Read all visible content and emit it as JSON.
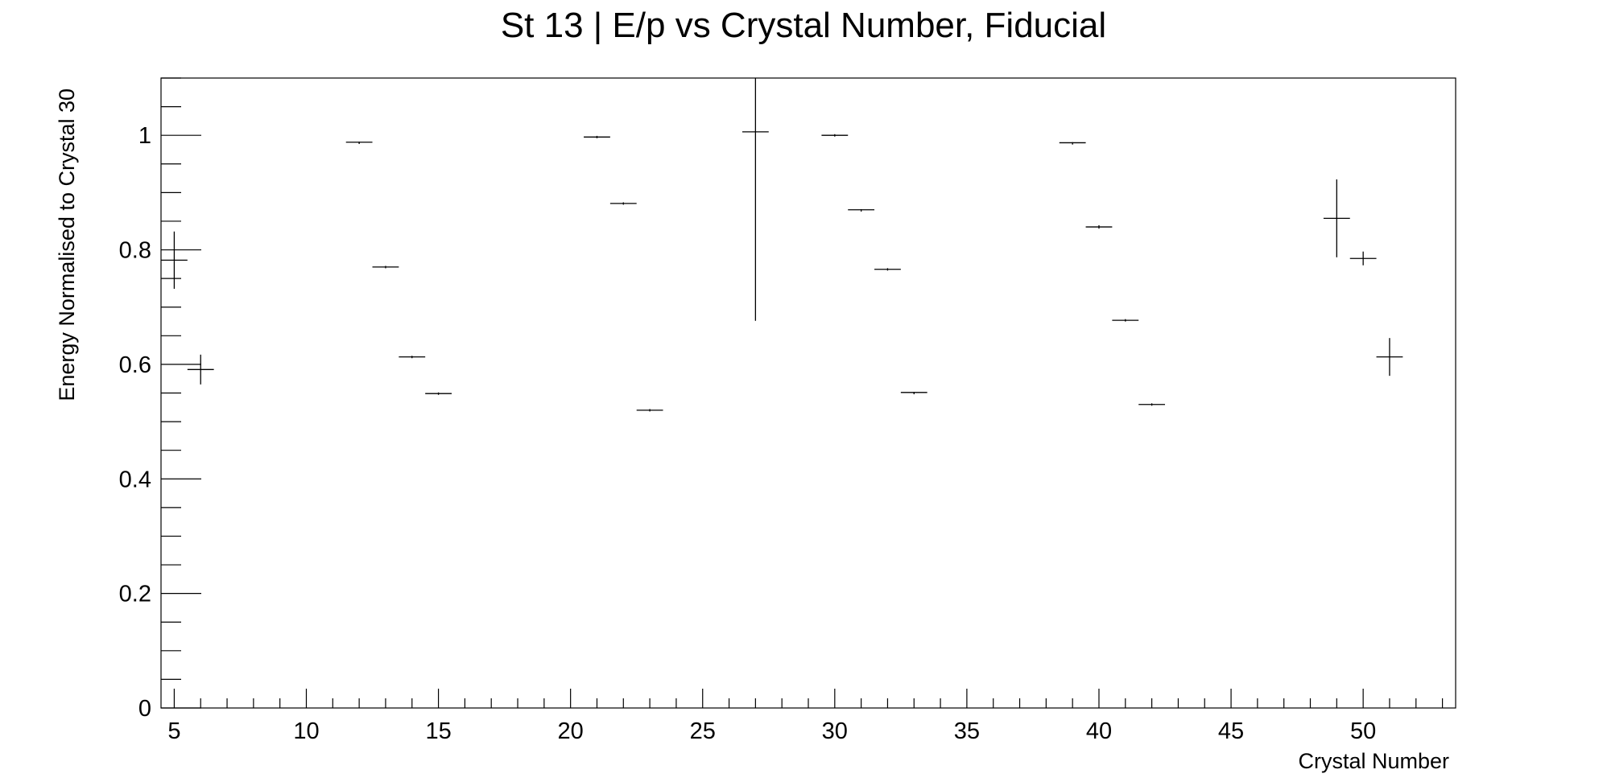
{
  "chart_data": {
    "type": "scatter",
    "title": "St 13 | E/p vs Crystal Number, Fiducial",
    "xlabel": "Crystal Number",
    "ylabel": "Energy Normalised to Crystal 30",
    "xlim": [
      4.5,
      53.5
    ],
    "ylim": [
      0,
      1.1
    ],
    "grid": false,
    "legend": "none",
    "x_ticks": [
      "5",
      "10",
      "15",
      "20",
      "25",
      "30",
      "35",
      "40",
      "45",
      "50"
    ],
    "y_ticks": [
      "0",
      "0.2",
      "0.4",
      "0.6",
      "0.8",
      "1"
    ],
    "color": "#000000",
    "series": [
      {
        "points": [
          {
            "x": 5,
            "y": 0.782,
            "ex": 0.5,
            "ey": 0.05
          },
          {
            "x": 6,
            "y": 0.591,
            "ex": 0.5,
            "ey": 0.026
          },
          {
            "x": 12,
            "y": 0.988,
            "ex": 0.5,
            "ey": 0.001
          },
          {
            "x": 13,
            "y": 0.77,
            "ex": 0.5,
            "ey": 0.002
          },
          {
            "x": 14,
            "y": 0.613,
            "ex": 0.5,
            "ey": 0.002
          },
          {
            "x": 15,
            "y": 0.549,
            "ex": 0.5,
            "ey": 0.002
          },
          {
            "x": 21,
            "y": 0.997,
            "ex": 0.5,
            "ey": 0.002
          },
          {
            "x": 22,
            "y": 0.881,
            "ex": 0.5,
            "ey": 0.002
          },
          {
            "x": 23,
            "y": 0.52,
            "ex": 0.5,
            "ey": 0.002
          },
          {
            "x": 27,
            "y": 1.006,
            "ex": 0.5,
            "ey": 0.33
          },
          {
            "x": 30,
            "y": 1.0,
            "ex": 0.5,
            "ey": 0.002
          },
          {
            "x": 31,
            "y": 0.87,
            "ex": 0.5,
            "ey": 0.001
          },
          {
            "x": 32,
            "y": 0.766,
            "ex": 0.5,
            "ey": 0.002
          },
          {
            "x": 33,
            "y": 0.551,
            "ex": 0.5,
            "ey": 0.001
          },
          {
            "x": 39,
            "y": 0.987,
            "ex": 0.5,
            "ey": 0.001
          },
          {
            "x": 40,
            "y": 0.84,
            "ex": 0.5,
            "ey": 0.003
          },
          {
            "x": 41,
            "y": 0.677,
            "ex": 0.5,
            "ey": 0.002
          },
          {
            "x": 42,
            "y": 0.53,
            "ex": 0.5,
            "ey": 0.002
          },
          {
            "x": 49,
            "y": 0.855,
            "ex": 0.5,
            "ey": 0.068
          },
          {
            "x": 50,
            "y": 0.785,
            "ex": 0.5,
            "ey": 0.012
          },
          {
            "x": 51,
            "y": 0.613,
            "ex": 0.5,
            "ey": 0.033
          }
        ]
      }
    ]
  }
}
